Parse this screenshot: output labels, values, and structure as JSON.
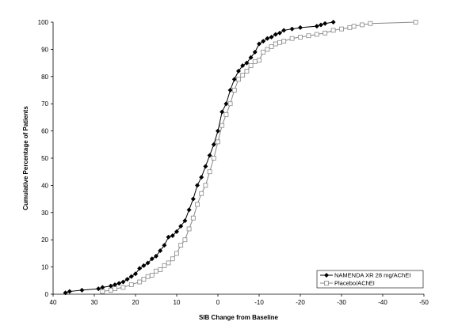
{
  "chart_data": {
    "type": "line",
    "xlabel": "SIB Change from Baseline",
    "ylabel": "Cumulative Percentage of Patients",
    "xlim": [
      40,
      -50
    ],
    "ylim": [
      0,
      100
    ],
    "x_ticks": [
      40,
      30,
      20,
      10,
      0,
      -10,
      -20,
      -30,
      -40,
      -50
    ],
    "x_tick_labels": [
      "40",
      "30",
      "20",
      "10",
      "0",
      "-10",
      "-20",
      "-30",
      "-40",
      "-50"
    ],
    "y_ticks": [
      0,
      10,
      20,
      30,
      40,
      50,
      60,
      70,
      80,
      90,
      100
    ],
    "y_tick_labels": [
      "0",
      "10",
      "20",
      "30",
      "40",
      "50",
      "60",
      "70",
      "80",
      "90",
      "100"
    ],
    "grid": false,
    "legend_position": "bottom-right",
    "series": [
      {
        "name": "NAMENDA XR 28 mg/AChEI",
        "color": "#000000",
        "marker": "filled-diamond",
        "points": [
          [
            37,
            0.5
          ],
          [
            36,
            1
          ],
          [
            33,
            1.5
          ],
          [
            29,
            2
          ],
          [
            28,
            2.5
          ],
          [
            26,
            3
          ],
          [
            25,
            3.5
          ],
          [
            24,
            4
          ],
          [
            23,
            4.5
          ],
          [
            22,
            5.5
          ],
          [
            21,
            6.5
          ],
          [
            20,
            7.5
          ],
          [
            19,
            9.5
          ],
          [
            18,
            10.5
          ],
          [
            17,
            11.5
          ],
          [
            16,
            13
          ],
          [
            15,
            14
          ],
          [
            14,
            16
          ],
          [
            13,
            18
          ],
          [
            12,
            21
          ],
          [
            11,
            21.5
          ],
          [
            10,
            23
          ],
          [
            9,
            25
          ],
          [
            8,
            27
          ],
          [
            7,
            31
          ],
          [
            6,
            35
          ],
          [
            5,
            40
          ],
          [
            4,
            43
          ],
          [
            3,
            47
          ],
          [
            2,
            51
          ],
          [
            1,
            55
          ],
          [
            0,
            60
          ],
          [
            -1,
            67
          ],
          [
            -2,
            70
          ],
          [
            -3,
            75
          ],
          [
            -4,
            79
          ],
          [
            -5,
            82
          ],
          [
            -6,
            84
          ],
          [
            -7,
            85
          ],
          [
            -8,
            87
          ],
          [
            -9,
            89
          ],
          [
            -10,
            92
          ],
          [
            -11,
            93
          ],
          [
            -12,
            94
          ],
          [
            -13,
            94.5
          ],
          [
            -14,
            95.5
          ],
          [
            -15,
            96
          ],
          [
            -16,
            97
          ],
          [
            -18,
            97.5
          ],
          [
            -20,
            98
          ],
          [
            -24,
            98.5
          ],
          [
            -25,
            99
          ],
          [
            -26,
            99.5
          ],
          [
            -28,
            100
          ]
        ]
      },
      {
        "name": "Placebo/AChEI",
        "color": "#888888",
        "marker": "open-square",
        "points": [
          [
            28,
            1
          ],
          [
            26,
            1.5
          ],
          [
            25,
            2
          ],
          [
            23,
            2.5
          ],
          [
            21,
            3.5
          ],
          [
            19,
            4.5
          ],
          [
            18,
            5.5
          ],
          [
            17,
            6.5
          ],
          [
            16,
            7
          ],
          [
            15,
            8.5
          ],
          [
            14,
            9
          ],
          [
            13,
            10.5
          ],
          [
            12,
            11.5
          ],
          [
            11,
            13
          ],
          [
            10,
            15
          ],
          [
            9,
            18
          ],
          [
            8,
            20
          ],
          [
            7,
            24
          ],
          [
            6,
            28
          ],
          [
            5,
            33
          ],
          [
            4,
            37
          ],
          [
            3,
            40
          ],
          [
            2,
            45
          ],
          [
            1,
            50
          ],
          [
            0,
            56
          ],
          [
            -1,
            62
          ],
          [
            -2,
            66
          ],
          [
            -3,
            70
          ],
          [
            -4,
            75
          ],
          [
            -5,
            79
          ],
          [
            -6,
            80.5
          ],
          [
            -7,
            82
          ],
          [
            -8,
            84
          ],
          [
            -9,
            85.5
          ],
          [
            -10,
            86
          ],
          [
            -11,
            89
          ],
          [
            -12,
            90
          ],
          [
            -13,
            91
          ],
          [
            -14,
            92
          ],
          [
            -15,
            92.5
          ],
          [
            -16,
            93
          ],
          [
            -18,
            94
          ],
          [
            -20,
            94.5
          ],
          [
            -22,
            95
          ],
          [
            -24,
            95.5
          ],
          [
            -26,
            96
          ],
          [
            -28,
            97
          ],
          [
            -30,
            97.5
          ],
          [
            -32,
            98
          ],
          [
            -33,
            98.5
          ],
          [
            -35,
            99
          ],
          [
            -37,
            99.5
          ],
          [
            -48,
            100
          ]
        ]
      }
    ]
  }
}
